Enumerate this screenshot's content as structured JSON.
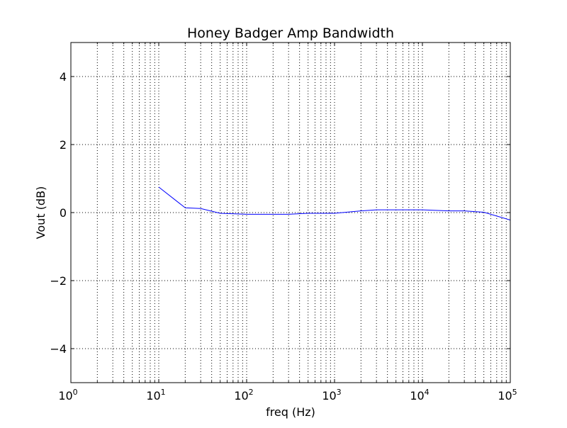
{
  "chart_data": {
    "type": "line",
    "title": "Honey Badger Amp Bandwidth",
    "xlabel": "freq (Hz)",
    "ylabel": "Vout (dB)",
    "xscale": "log",
    "xlim": [
      1,
      100000
    ],
    "ylim": [
      -5,
      5
    ],
    "grid": true,
    "x_ticks": [
      {
        "value": 1,
        "base": "10",
        "exp": "0"
      },
      {
        "value": 10,
        "base": "10",
        "exp": "1"
      },
      {
        "value": 100,
        "base": "10",
        "exp": "2"
      },
      {
        "value": 1000,
        "base": "10",
        "exp": "3"
      },
      {
        "value": 10000,
        "base": "10",
        "exp": "4"
      },
      {
        "value": 100000,
        "base": "10",
        "exp": "5"
      }
    ],
    "y_ticks": [
      {
        "value": -4,
        "label": "−4"
      },
      {
        "value": -2,
        "label": "−2"
      },
      {
        "value": 0,
        "label": "0"
      },
      {
        "value": 2,
        "label": "2"
      },
      {
        "value": 4,
        "label": "4"
      }
    ],
    "series": [
      {
        "color": "#0000ff",
        "x": [
          10,
          20,
          30,
          50,
          100,
          200,
          300,
          500,
          1000,
          2000,
          3000,
          5000,
          10000,
          20000,
          30000,
          50000,
          100000
        ],
        "y": [
          0.75,
          0.14,
          0.12,
          -0.02,
          -0.05,
          -0.05,
          -0.05,
          -0.02,
          -0.02,
          0.05,
          0.08,
          0.08,
          0.08,
          0.05,
          0.05,
          0.01,
          -0.22
        ]
      }
    ]
  }
}
